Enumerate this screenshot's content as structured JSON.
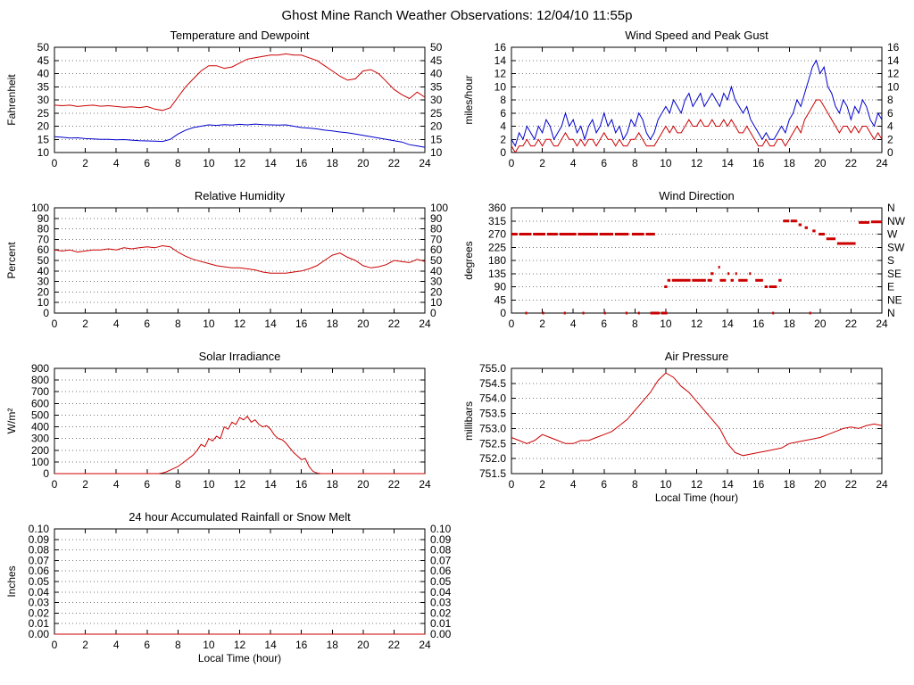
{
  "page": {
    "title": "Ghost Mine Ranch Weather Observations: 12/04/10 11:55p"
  },
  "colors": {
    "red": "#cc0000",
    "blue": "#0000cc"
  },
  "chart_data": [
    {
      "id": "temperature",
      "type": "line",
      "title": "Temperature and Dewpoint",
      "ylabel": "Fahrenheit",
      "xlabel": "",
      "xlim": [
        0,
        24
      ],
      "xticks": [
        0,
        2,
        4,
        6,
        8,
        10,
        12,
        14,
        16,
        18,
        20,
        22,
        24
      ],
      "ylim": [
        10,
        50
      ],
      "yticks": [
        10,
        15,
        20,
        25,
        30,
        35,
        40,
        45,
        50
      ],
      "ytick_labels": [
        "10",
        "15",
        "20",
        "25",
        "30",
        "35",
        "40",
        "45",
        "50"
      ],
      "right_labels": [
        "10",
        "15",
        "20",
        "25",
        "30",
        "35",
        "40",
        "45",
        "50"
      ],
      "series": [
        {
          "name": "Temperature",
          "color": "#cc0000",
          "x0": 0,
          "dx": 0.5,
          "values": [
            28,
            27.8,
            28,
            27.5,
            27.8,
            28,
            27.6,
            27.8,
            27.5,
            27.2,
            27.4,
            27,
            27.5,
            26.5,
            26,
            27,
            31,
            35,
            38,
            41,
            43,
            43,
            42,
            42.5,
            44,
            45.5,
            46,
            46.5,
            47,
            47,
            47.5,
            47,
            47,
            46,
            45,
            43,
            41,
            39,
            37.5,
            38,
            41,
            41.5,
            40,
            37,
            34,
            32,
            30.5,
            33,
            31
          ]
        },
        {
          "name": "Dewpoint",
          "color": "#0000cc",
          "x0": 0,
          "dx": 0.5,
          "values": [
            16,
            15.8,
            15.5,
            15.6,
            15.3,
            15.2,
            15,
            15,
            14.8,
            14.9,
            14.7,
            14.5,
            14.4,
            14.3,
            14.2,
            15,
            17,
            18.5,
            19.5,
            20,
            20.5,
            20.3,
            20.6,
            20.4,
            20.7,
            20.5,
            20.8,
            20.6,
            20.5,
            20.4,
            20.5,
            20,
            19.5,
            19.3,
            19,
            18.5,
            18.2,
            17.8,
            17.5,
            17,
            16.5,
            16,
            15.5,
            15,
            14.5,
            14,
            13,
            12.5,
            12
          ]
        }
      ]
    },
    {
      "id": "wind_speed",
      "type": "line",
      "title": "Wind Speed and Peak Gust",
      "ylabel": "miles/hour",
      "xlabel": "",
      "xlim": [
        0,
        24
      ],
      "xticks": [
        0,
        2,
        4,
        6,
        8,
        10,
        12,
        14,
        16,
        18,
        20,
        22,
        24
      ],
      "ylim": [
        0,
        16
      ],
      "yticks": [
        0,
        2,
        4,
        6,
        8,
        10,
        12,
        14,
        16
      ],
      "ytick_labels": [
        "0",
        "2",
        "4",
        "6",
        "8",
        "10",
        "12",
        "14",
        "16"
      ],
      "right_labels": [
        "0",
        "2",
        "4",
        "6",
        "8",
        "10",
        "12",
        "14",
        "16"
      ],
      "series": [
        {
          "name": "Peak Gust",
          "color": "#0000cc",
          "x0": 0,
          "dx": 0.25,
          "values": [
            2,
            1,
            3,
            2,
            4,
            3,
            2,
            4,
            3,
            5,
            4,
            2,
            3,
            4,
            6,
            4,
            5,
            3,
            4,
            2,
            4,
            5,
            3,
            4,
            6,
            4,
            5,
            3,
            4,
            2,
            3,
            5,
            4,
            6,
            5,
            3,
            2,
            3,
            5,
            6,
            7,
            6,
            8,
            7,
            6,
            8,
            9,
            7,
            8,
            9,
            7,
            8,
            9,
            8,
            7,
            9,
            8,
            10,
            8,
            7,
            6,
            7,
            5,
            4,
            3,
            2,
            3,
            2,
            2,
            3,
            4,
            3,
            5,
            6,
            8,
            7,
            9,
            11,
            13,
            14,
            12,
            13,
            10,
            9,
            7,
            6,
            8,
            7,
            5,
            7,
            6,
            8,
            7,
            5,
            4,
            6,
            5
          ]
        },
        {
          "name": "Wind Speed",
          "color": "#cc0000",
          "x0": 0,
          "dx": 0.25,
          "values": [
            1,
            0,
            1,
            1,
            2,
            1,
            1,
            2,
            1,
            2,
            2,
            1,
            1,
            2,
            3,
            2,
            2,
            1,
            2,
            1,
            2,
            2,
            1,
            2,
            3,
            2,
            2,
            1,
            2,
            1,
            1,
            2,
            2,
            3,
            2,
            1,
            1,
            1,
            2,
            3,
            4,
            3,
            4,
            3,
            3,
            4,
            5,
            4,
            4,
            5,
            4,
            4,
            5,
            4,
            4,
            5,
            4,
            5,
            4,
            3,
            3,
            4,
            3,
            2,
            1,
            1,
            2,
            1,
            1,
            2,
            2,
            1,
            2,
            3,
            4,
            3,
            5,
            6,
            7,
            8,
            8,
            7,
            6,
            5,
            4,
            3,
            4,
            4,
            3,
            4,
            3,
            4,
            4,
            3,
            2,
            3,
            2
          ]
        }
      ]
    },
    {
      "id": "humidity",
      "type": "line",
      "title": "Relative Humidity",
      "ylabel": "Percent",
      "xlabel": "",
      "xlim": [
        0,
        24
      ],
      "xticks": [
        0,
        2,
        4,
        6,
        8,
        10,
        12,
        14,
        16,
        18,
        20,
        22,
        24
      ],
      "ylim": [
        0,
        100
      ],
      "yticks": [
        0,
        10,
        20,
        30,
        40,
        50,
        60,
        70,
        80,
        90,
        100
      ],
      "ytick_labels": [
        "0",
        "10",
        "20",
        "30",
        "40",
        "50",
        "60",
        "70",
        "80",
        "90",
        "100"
      ],
      "right_labels": [
        "0",
        "10",
        "20",
        "30",
        "40",
        "50",
        "60",
        "70",
        "80",
        "90",
        "100"
      ],
      "series": [
        {
          "name": "Relative Humidity",
          "color": "#cc0000",
          "x0": 0,
          "dx": 0.5,
          "values": [
            60,
            59,
            60,
            58,
            59,
            60,
            60,
            61,
            60,
            62,
            61,
            62,
            63,
            62,
            64,
            63,
            58,
            54,
            51,
            49,
            47,
            45,
            44,
            43,
            43,
            42,
            41,
            39,
            38,
            38,
            38,
            39,
            40,
            42,
            45,
            50,
            55,
            57,
            53,
            50,
            45,
            43,
            44,
            46,
            50,
            49,
            48,
            51,
            49
          ]
        }
      ]
    },
    {
      "id": "wind_direction",
      "type": "scatter",
      "title": "Wind Direction",
      "ylabel": "degrees",
      "xlabel": "",
      "xlim": [
        0,
        24
      ],
      "xticks": [
        0,
        2,
        4,
        6,
        8,
        10,
        12,
        14,
        16,
        18,
        20,
        22,
        24
      ],
      "ylim": [
        0,
        360
      ],
      "yticks": [
        0,
        45,
        90,
        135,
        180,
        225,
        270,
        315,
        360
      ],
      "ytick_labels": [
        "0",
        "45",
        "90",
        "135",
        "180",
        "225",
        "270",
        "315",
        "360"
      ],
      "right_labels": [
        "N",
        "NE",
        "E",
        "SE",
        "S",
        "SW",
        "W",
        "NW",
        "N"
      ],
      "segment_color": "#cc0000",
      "segments": [
        [
          0,
          0.4,
          270
        ],
        [
          0.5,
          1.3,
          270
        ],
        [
          1.4,
          2.2,
          270
        ],
        [
          2.3,
          3.0,
          270
        ],
        [
          3.1,
          4.2,
          270
        ],
        [
          4.3,
          5.6,
          270
        ],
        [
          5.7,
          6.6,
          270
        ],
        [
          6.7,
          7.6,
          270
        ],
        [
          7.8,
          8.6,
          270
        ],
        [
          8.7,
          9.3,
          270
        ],
        [
          0.9,
          1.0,
          0
        ],
        [
          2.0,
          2.1,
          0
        ],
        [
          3.4,
          3.5,
          0
        ],
        [
          4.6,
          4.7,
          0
        ],
        [
          6.0,
          6.1,
          0
        ],
        [
          7.4,
          7.5,
          0
        ],
        [
          8.2,
          8.3,
          0
        ],
        [
          9.0,
          9.6,
          0
        ],
        [
          9.7,
          10.1,
          0
        ],
        [
          9.9,
          10.1,
          90
        ],
        [
          10.1,
          10.3,
          112
        ],
        [
          10.4,
          11.6,
          112
        ],
        [
          11.7,
          12.6,
          112
        ],
        [
          12.7,
          13.0,
          112
        ],
        [
          12.9,
          13.1,
          135
        ],
        [
          13.4,
          13.5,
          157
        ],
        [
          13.5,
          13.9,
          112
        ],
        [
          14.0,
          14.1,
          135
        ],
        [
          14.2,
          14.4,
          112
        ],
        [
          14.5,
          14.6,
          135
        ],
        [
          14.7,
          15.3,
          112
        ],
        [
          15.4,
          15.5,
          135
        ],
        [
          15.8,
          16.3,
          112
        ],
        [
          16.4,
          16.6,
          90
        ],
        [
          16.7,
          17.2,
          90
        ],
        [
          16.9,
          17.0,
          0
        ],
        [
          17.3,
          17.5,
          112
        ],
        [
          17.6,
          18.0,
          315
        ],
        [
          18.1,
          18.5,
          315
        ],
        [
          18.6,
          18.8,
          302
        ],
        [
          19.0,
          19.2,
          292
        ],
        [
          19.3,
          19.4,
          0
        ],
        [
          19.5,
          19.7,
          281
        ],
        [
          19.9,
          20.3,
          270
        ],
        [
          20.4,
          21.0,
          254
        ],
        [
          21.1,
          22.3,
          238
        ],
        [
          22.5,
          23.2,
          310
        ],
        [
          23.3,
          24.0,
          312
        ]
      ]
    },
    {
      "id": "solar",
      "type": "line",
      "title": "Solar Irradiance",
      "ylabel": "W/m²",
      "xlabel": "",
      "xlim": [
        0,
        24
      ],
      "xticks": [
        0,
        2,
        4,
        6,
        8,
        10,
        12,
        14,
        16,
        18,
        20,
        22,
        24
      ],
      "ylim": [
        0,
        900
      ],
      "yticks": [
        0,
        100,
        200,
        300,
        400,
        500,
        600,
        700,
        800,
        900
      ],
      "ytick_labels": [
        "0",
        "100",
        "200",
        "300",
        "400",
        "500",
        "600",
        "700",
        "800",
        "900"
      ],
      "right_labels": null,
      "series": [
        {
          "name": "Solar Irradiance",
          "color": "#cc0000",
          "x0": 0,
          "dx": 0.25,
          "values": [
            0,
            0,
            0,
            0,
            0,
            0,
            0,
            0,
            0,
            0,
            0,
            0,
            0,
            0,
            0,
            0,
            0,
            0,
            0,
            0,
            0,
            0,
            0,
            0,
            0,
            0,
            0,
            0,
            5,
            15,
            30,
            45,
            60,
            85,
            110,
            135,
            160,
            200,
            250,
            230,
            300,
            280,
            320,
            300,
            400,
            380,
            440,
            420,
            480,
            460,
            490,
            440,
            460,
            420,
            400,
            410,
            380,
            330,
            300,
            290,
            260,
            220,
            180,
            150,
            120,
            130,
            60,
            20,
            5,
            0,
            0,
            0,
            0,
            0,
            0,
            0,
            0,
            0,
            0,
            0,
            0,
            0,
            0,
            0,
            0,
            0,
            0,
            0,
            0,
            0,
            0,
            0,
            0,
            0,
            0,
            0,
            0
          ]
        }
      ]
    },
    {
      "id": "pressure",
      "type": "line",
      "title": "Air Pressure",
      "ylabel": "millibars",
      "xlabel": "Local Time (hour)",
      "xlim": [
        0,
        24
      ],
      "xticks": [
        0,
        2,
        4,
        6,
        8,
        10,
        12,
        14,
        16,
        18,
        20,
        22,
        24
      ],
      "ylim": [
        751.5,
        755.0
      ],
      "yticks": [
        751.5,
        752.0,
        752.5,
        753.0,
        753.5,
        754.0,
        754.5,
        755.0
      ],
      "ytick_labels": [
        "751.5",
        "752.0",
        "752.5",
        "753.0",
        "753.5",
        "754.0",
        "754.5",
        "755.0"
      ],
      "right_labels": null,
      "series": [
        {
          "name": "Air Pressure",
          "color": "#cc0000",
          "x0": 0,
          "dx": 0.5,
          "values": [
            752.7,
            752.6,
            752.5,
            752.6,
            752.8,
            752.7,
            752.6,
            752.5,
            752.5,
            752.6,
            752.6,
            752.7,
            752.8,
            752.9,
            753.1,
            753.3,
            753.6,
            753.9,
            754.2,
            754.6,
            754.85,
            754.7,
            754.4,
            754.2,
            753.9,
            753.6,
            753.3,
            753.0,
            752.5,
            752.2,
            752.1,
            752.15,
            752.2,
            752.25,
            752.3,
            752.35,
            752.5,
            752.55,
            752.6,
            752.65,
            752.7,
            752.8,
            752.9,
            753.0,
            753.05,
            753.0,
            753.1,
            753.15,
            753.1
          ]
        }
      ]
    },
    {
      "id": "rainfall",
      "type": "line",
      "title": "24 hour Accumulated Rainfall or Snow Melt",
      "ylabel": "Inches",
      "xlabel": "Local Time (hour)",
      "xlim": [
        0,
        24
      ],
      "xticks": [
        0,
        2,
        4,
        6,
        8,
        10,
        12,
        14,
        16,
        18,
        20,
        22,
        24
      ],
      "ylim": [
        0,
        0.1
      ],
      "yticks": [
        0,
        0.01,
        0.02,
        0.03,
        0.04,
        0.05,
        0.06,
        0.07,
        0.08,
        0.09,
        0.1
      ],
      "ytick_labels": [
        "0.00",
        "0.01",
        "0.02",
        "0.03",
        "0.04",
        "0.05",
        "0.06",
        "0.07",
        "0.08",
        "0.09",
        "0.10"
      ],
      "right_labels": [
        "0.00",
        "0.01",
        "0.02",
        "0.03",
        "0.04",
        "0.05",
        "0.06",
        "0.07",
        "0.08",
        "0.09",
        "0.10"
      ],
      "series": [
        {
          "name": "Accumulated Rainfall",
          "color": "#cc0000",
          "x0": 0,
          "dx": 24,
          "values": [
            0,
            0
          ]
        }
      ]
    }
  ]
}
